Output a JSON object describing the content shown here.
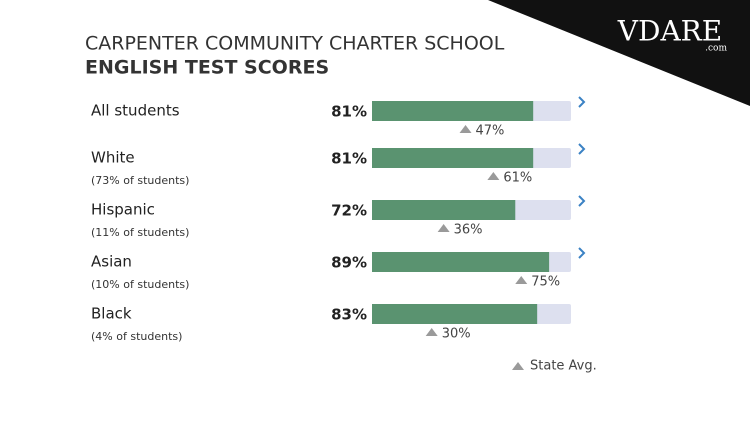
{
  "chart_data": {
    "type": "bar",
    "orientation": "horizontal",
    "title": "CARPENTER COMMUNITY CHARTER SCHOOL",
    "subtitle": "ENGLISH TEST SCORES",
    "categories": [
      "All students",
      "White",
      "Hispanic",
      "Asian",
      "Black"
    ],
    "category_notes": [
      null,
      "(73% of students)",
      "(11% of students)",
      "(10% of students)",
      "(4% of students)"
    ],
    "values": [
      81,
      81,
      72,
      89,
      83
    ],
    "value_labels": [
      "81%",
      "81%",
      "72%",
      "89%",
      "83%"
    ],
    "color": "#5a9370",
    "track_color": "#dde0ef",
    "markers": {
      "name": "State Avg.",
      "values": [
        47,
        61,
        36,
        75,
        30
      ],
      "value_labels": [
        "47%",
        "61%",
        "36%",
        "75%",
        "30%"
      ],
      "color": "#9a9a9a"
    },
    "expandable": [
      true,
      true,
      true,
      true,
      false
    ],
    "xlim": [
      0,
      100
    ],
    "watermark": "VDARE",
    "watermark_sub": ".com"
  }
}
